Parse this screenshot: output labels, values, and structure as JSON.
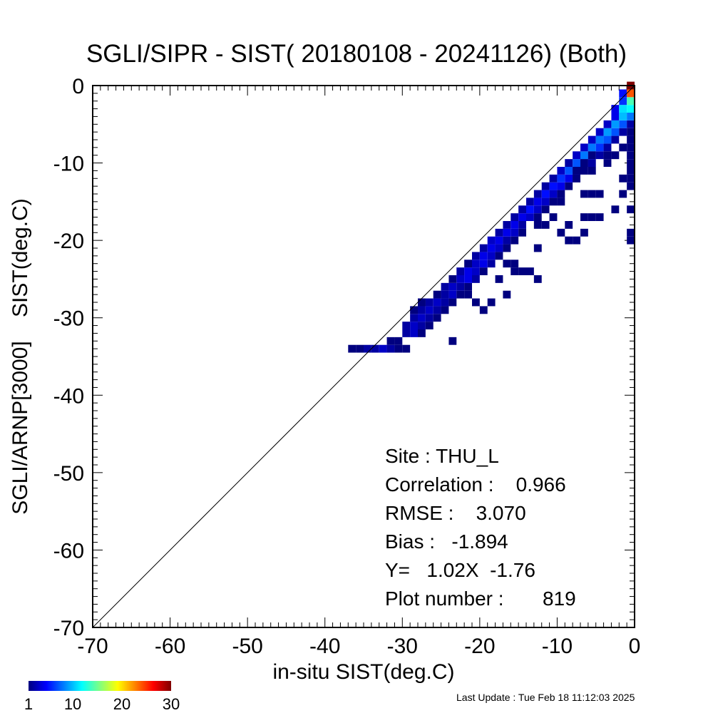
{
  "chart_data": {
    "type": "heatmap",
    "title": "SGLI/SIPR - SIST( 20180108 - 20241126) (Both)",
    "xlabel": "in-situ SIST(deg.C)",
    "ylabel": "SGLI/ARNP[3000]    SIST(deg.C)",
    "xlim": [
      -70,
      0
    ],
    "ylim": [
      -70,
      0
    ],
    "x_ticks": [
      -70,
      -60,
      -50,
      -40,
      -30,
      -20,
      -10,
      0
    ],
    "y_ticks": [
      0,
      -10,
      -20,
      -30,
      -40,
      -50,
      -60,
      -70
    ],
    "reference_line": "1:1",
    "bin_size": 1,
    "colorbar": {
      "range": [
        1,
        30
      ],
      "ticks": [
        "1",
        "10",
        "20",
        "30"
      ],
      "colors": [
        "#00007f",
        "#0000ff",
        "#0080ff",
        "#00ffff",
        "#80ff80",
        "#ffff00",
        "#ff8000",
        "#ff0000",
        "#7f0000"
      ]
    },
    "cells": [
      [
        -37,
        -34,
        1
      ],
      [
        -36,
        -34,
        1
      ],
      [
        -35,
        -34,
        2
      ],
      [
        -34,
        -34,
        2
      ],
      [
        -33,
        -34,
        3
      ],
      [
        -32,
        -34,
        2
      ],
      [
        -31,
        -34,
        1
      ],
      [
        -30,
        -34,
        1
      ],
      [
        -32,
        -33,
        1
      ],
      [
        -31,
        -33,
        1
      ],
      [
        -30,
        -32,
        2
      ],
      [
        -29,
        -32,
        3
      ],
      [
        -28,
        -32,
        1
      ],
      [
        -30,
        -31,
        2
      ],
      [
        -29,
        -31,
        3
      ],
      [
        -28,
        -31,
        2
      ],
      [
        -27,
        -31,
        1
      ],
      [
        -29,
        -30,
        2
      ],
      [
        -28,
        -30,
        3
      ],
      [
        -27,
        -30,
        2
      ],
      [
        -26,
        -30,
        1
      ],
      [
        -29,
        -29,
        1
      ],
      [
        -28,
        -29,
        2
      ],
      [
        -27,
        -29,
        3
      ],
      [
        -26,
        -29,
        2
      ],
      [
        -28,
        -28,
        2
      ],
      [
        -27,
        -28,
        2
      ],
      [
        -26,
        -28,
        3
      ],
      [
        -25,
        -28,
        2
      ],
      [
        -24,
        -28,
        1
      ],
      [
        -26,
        -27,
        1
      ],
      [
        -25,
        -27,
        2
      ],
      [
        -24,
        -27,
        3
      ],
      [
        -23,
        -27,
        1
      ],
      [
        -25,
        -26,
        2
      ],
      [
        -24,
        -26,
        3
      ],
      [
        -23,
        -26,
        2
      ],
      [
        -22,
        -26,
        1
      ],
      [
        -24,
        -25,
        1
      ],
      [
        -23,
        -25,
        3
      ],
      [
        -22,
        -25,
        4
      ],
      [
        -21,
        -25,
        2
      ],
      [
        -23,
        -24,
        2
      ],
      [
        -22,
        -24,
        4
      ],
      [
        -21,
        -24,
        3
      ],
      [
        -20,
        -24,
        1
      ],
      [
        -22,
        -23,
        1
      ],
      [
        -21,
        -23,
        3
      ],
      [
        -20,
        -23,
        4
      ],
      [
        -19,
        -23,
        2
      ],
      [
        -21,
        -22,
        2
      ],
      [
        -20,
        -22,
        4
      ],
      [
        -19,
        -22,
        3
      ],
      [
        -18,
        -22,
        1
      ],
      [
        -20,
        -21,
        2
      ],
      [
        -19,
        -21,
        4
      ],
      [
        -18,
        -21,
        3
      ],
      [
        -17,
        -21,
        1
      ],
      [
        -19,
        -20,
        3
      ],
      [
        -18,
        -20,
        4
      ],
      [
        -17,
        -20,
        2
      ],
      [
        -16,
        -20,
        1
      ],
      [
        -18,
        -19,
        2
      ],
      [
        -17,
        -19,
        4
      ],
      [
        -16,
        -19,
        3
      ],
      [
        -15,
        -19,
        1
      ],
      [
        -17,
        -18,
        2
      ],
      [
        -16,
        -18,
        4
      ],
      [
        -15,
        -18,
        2
      ],
      [
        -16,
        -17,
        2
      ],
      [
        -15,
        -17,
        4
      ],
      [
        -14,
        -17,
        3
      ],
      [
        -13,
        -17,
        1
      ],
      [
        -15,
        -16,
        2
      ],
      [
        -14,
        -16,
        5
      ],
      [
        -13,
        -16,
        3
      ],
      [
        -12,
        -16,
        1
      ],
      [
        -14,
        -15,
        2
      ],
      [
        -13,
        -15,
        4
      ],
      [
        -12,
        -15,
        3
      ],
      [
        -11,
        -15,
        1
      ],
      [
        -13,
        -14,
        2
      ],
      [
        -12,
        -14,
        5
      ],
      [
        -11,
        -14,
        3
      ],
      [
        -10,
        -14,
        1
      ],
      [
        -12,
        -13,
        2
      ],
      [
        -11,
        -13,
        5
      ],
      [
        -10,
        -13,
        4
      ],
      [
        -9,
        -13,
        1
      ],
      [
        -11,
        -12,
        2
      ],
      [
        -10,
        -12,
        6
      ],
      [
        -9,
        -12,
        4
      ],
      [
        -8,
        -12,
        1
      ],
      [
        -10,
        -11,
        3
      ],
      [
        -9,
        -11,
        7
      ],
      [
        -8,
        -11,
        4
      ],
      [
        -7,
        -11,
        1
      ],
      [
        -9,
        -10,
        2
      ],
      [
        -8,
        -10,
        7
      ],
      [
        -7,
        -10,
        5
      ],
      [
        -6,
        -10,
        2
      ],
      [
        -8,
        -9,
        3
      ],
      [
        -7,
        -9,
        8
      ],
      [
        -6,
        -9,
        6
      ],
      [
        -5,
        -9,
        2
      ],
      [
        -7,
        -8,
        3
      ],
      [
        -6,
        -8,
        8
      ],
      [
        -5,
        -8,
        6
      ],
      [
        -4,
        -8,
        2
      ],
      [
        -6,
        -7,
        3
      ],
      [
        -5,
        -7,
        8
      ],
      [
        -4,
        -7,
        7
      ],
      [
        -3,
        -7,
        2
      ],
      [
        -5,
        -6,
        3
      ],
      [
        -4,
        -6,
        9
      ],
      [
        -3,
        -6,
        7
      ],
      [
        -2,
        -6,
        2
      ],
      [
        -4,
        -5,
        3
      ],
      [
        -3,
        -5,
        9
      ],
      [
        -2,
        -5,
        7
      ],
      [
        -1,
        -5,
        2
      ],
      [
        -3,
        -4,
        4
      ],
      [
        -2,
        -4,
        10
      ],
      [
        -1,
        -4,
        8
      ],
      [
        -3,
        -3,
        4
      ],
      [
        -2,
        -3,
        11
      ],
      [
        -1,
        -3,
        12
      ],
      [
        -2,
        -2,
        6
      ],
      [
        -1,
        -2,
        14
      ],
      [
        -2,
        -1,
        5
      ],
      [
        -1,
        -1,
        24
      ],
      [
        -1,
        0,
        30
      ],
      [
        -28,
        -28,
        1
      ],
      [
        -24,
        -33,
        1
      ],
      [
        -25,
        -29,
        1
      ],
      [
        -22,
        -27,
        1
      ],
      [
        -21,
        -28,
        1
      ],
      [
        -20,
        -29,
        1
      ],
      [
        -19,
        -28,
        1
      ],
      [
        -17,
        -27,
        1
      ],
      [
        -18,
        -25,
        1
      ],
      [
        -16,
        -24,
        1
      ],
      [
        -15,
        -24,
        1
      ],
      [
        -13,
        -25,
        1
      ],
      [
        -14,
        -24,
        1
      ],
      [
        -17,
        -23,
        1
      ],
      [
        -16,
        -23,
        1
      ],
      [
        -13,
        -21,
        1
      ],
      [
        -9,
        -20,
        1
      ],
      [
        -8,
        -20,
        1
      ],
      [
        -7,
        -19,
        1
      ],
      [
        -10,
        -19,
        1
      ],
      [
        -13,
        -18,
        1
      ],
      [
        -12,
        -18,
        1
      ],
      [
        -9,
        -18,
        1
      ],
      [
        -11,
        -17,
        1
      ],
      [
        -7,
        -17,
        1
      ],
      [
        -6,
        -17,
        1
      ],
      [
        -5,
        -17,
        1
      ],
      [
        -3,
        -16,
        1
      ],
      [
        -1,
        -16,
        1
      ],
      [
        -1,
        -20,
        1
      ],
      [
        -1,
        -19,
        1
      ],
      [
        -10,
        -15,
        1
      ],
      [
        -7,
        -14,
        1
      ],
      [
        -6,
        -14,
        1
      ],
      [
        -5,
        -14,
        1
      ],
      [
        -2,
        -14,
        1
      ],
      [
        -1,
        -13,
        1
      ],
      [
        -2,
        -12,
        1
      ],
      [
        -1,
        -12,
        1
      ],
      [
        -8,
        -11,
        1
      ],
      [
        -6,
        -11,
        1
      ],
      [
        -1,
        -11,
        1
      ],
      [
        -1,
        -10,
        1
      ],
      [
        -4,
        -10,
        1
      ],
      [
        -7,
        -10,
        1
      ],
      [
        -8,
        -12,
        1
      ],
      [
        -6,
        -9,
        1
      ],
      [
        -4,
        -9,
        1
      ],
      [
        -3,
        -9,
        1
      ],
      [
        -1,
        -9,
        1
      ],
      [
        -2,
        -8,
        1
      ],
      [
        -1,
        -8,
        1
      ],
      [
        -1,
        -7,
        1
      ],
      [
        -1,
        -6,
        1
      ]
    ]
  },
  "stats": {
    "site": "Site : THU_L",
    "correlation": "Correlation :    0.966",
    "rmse": "RMSE :    3.070",
    "bias": "Bias :   -1.894",
    "fit": "Y=   1.02X  -1.76",
    "plot_number": "Plot number :       819"
  },
  "footer": {
    "last_update": "Last Update : Tue Feb 18 11:12:03 2025"
  }
}
